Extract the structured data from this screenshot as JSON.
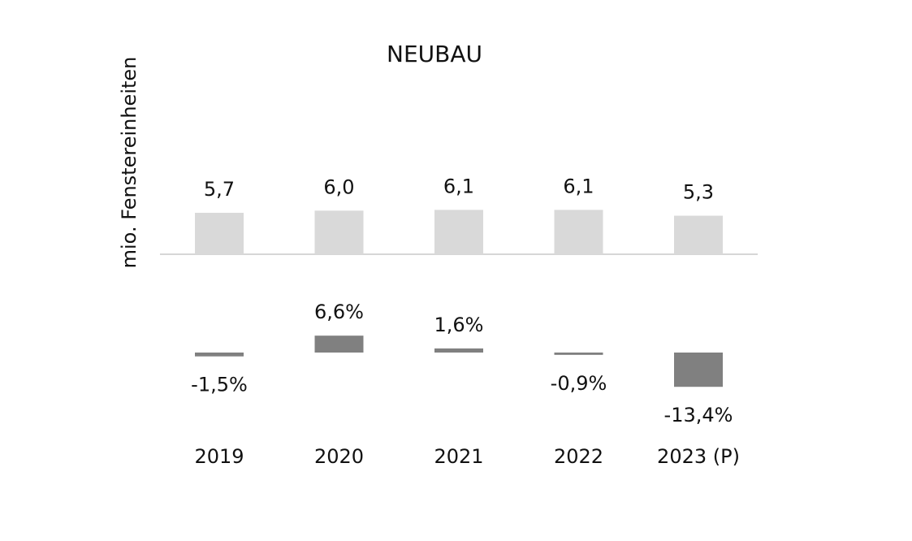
{
  "chart_data": [
    {
      "type": "bar",
      "title": "NEUBAU",
      "y_label": "mio. Fenstereinheiten",
      "values": [
        5.7,
        6.0,
        6.1,
        6.1,
        5.3
      ],
      "value_labels": [
        "5,7",
        "6,0",
        "6,1",
        "6,1",
        "5,3"
      ],
      "color": "#d9d9d9"
    },
    {
      "type": "bar",
      "categories": [
        "2019",
        "2020",
        "2021",
        "2022",
        "2023 (P)"
      ],
      "values": [
        -1.5,
        6.6,
        1.6,
        -0.9,
        -13.4
      ],
      "value_labels": [
        "-1,5%",
        "6,6%",
        "1,6%",
        "-0,9%",
        "-13,4%"
      ],
      "color": "#808080"
    }
  ]
}
